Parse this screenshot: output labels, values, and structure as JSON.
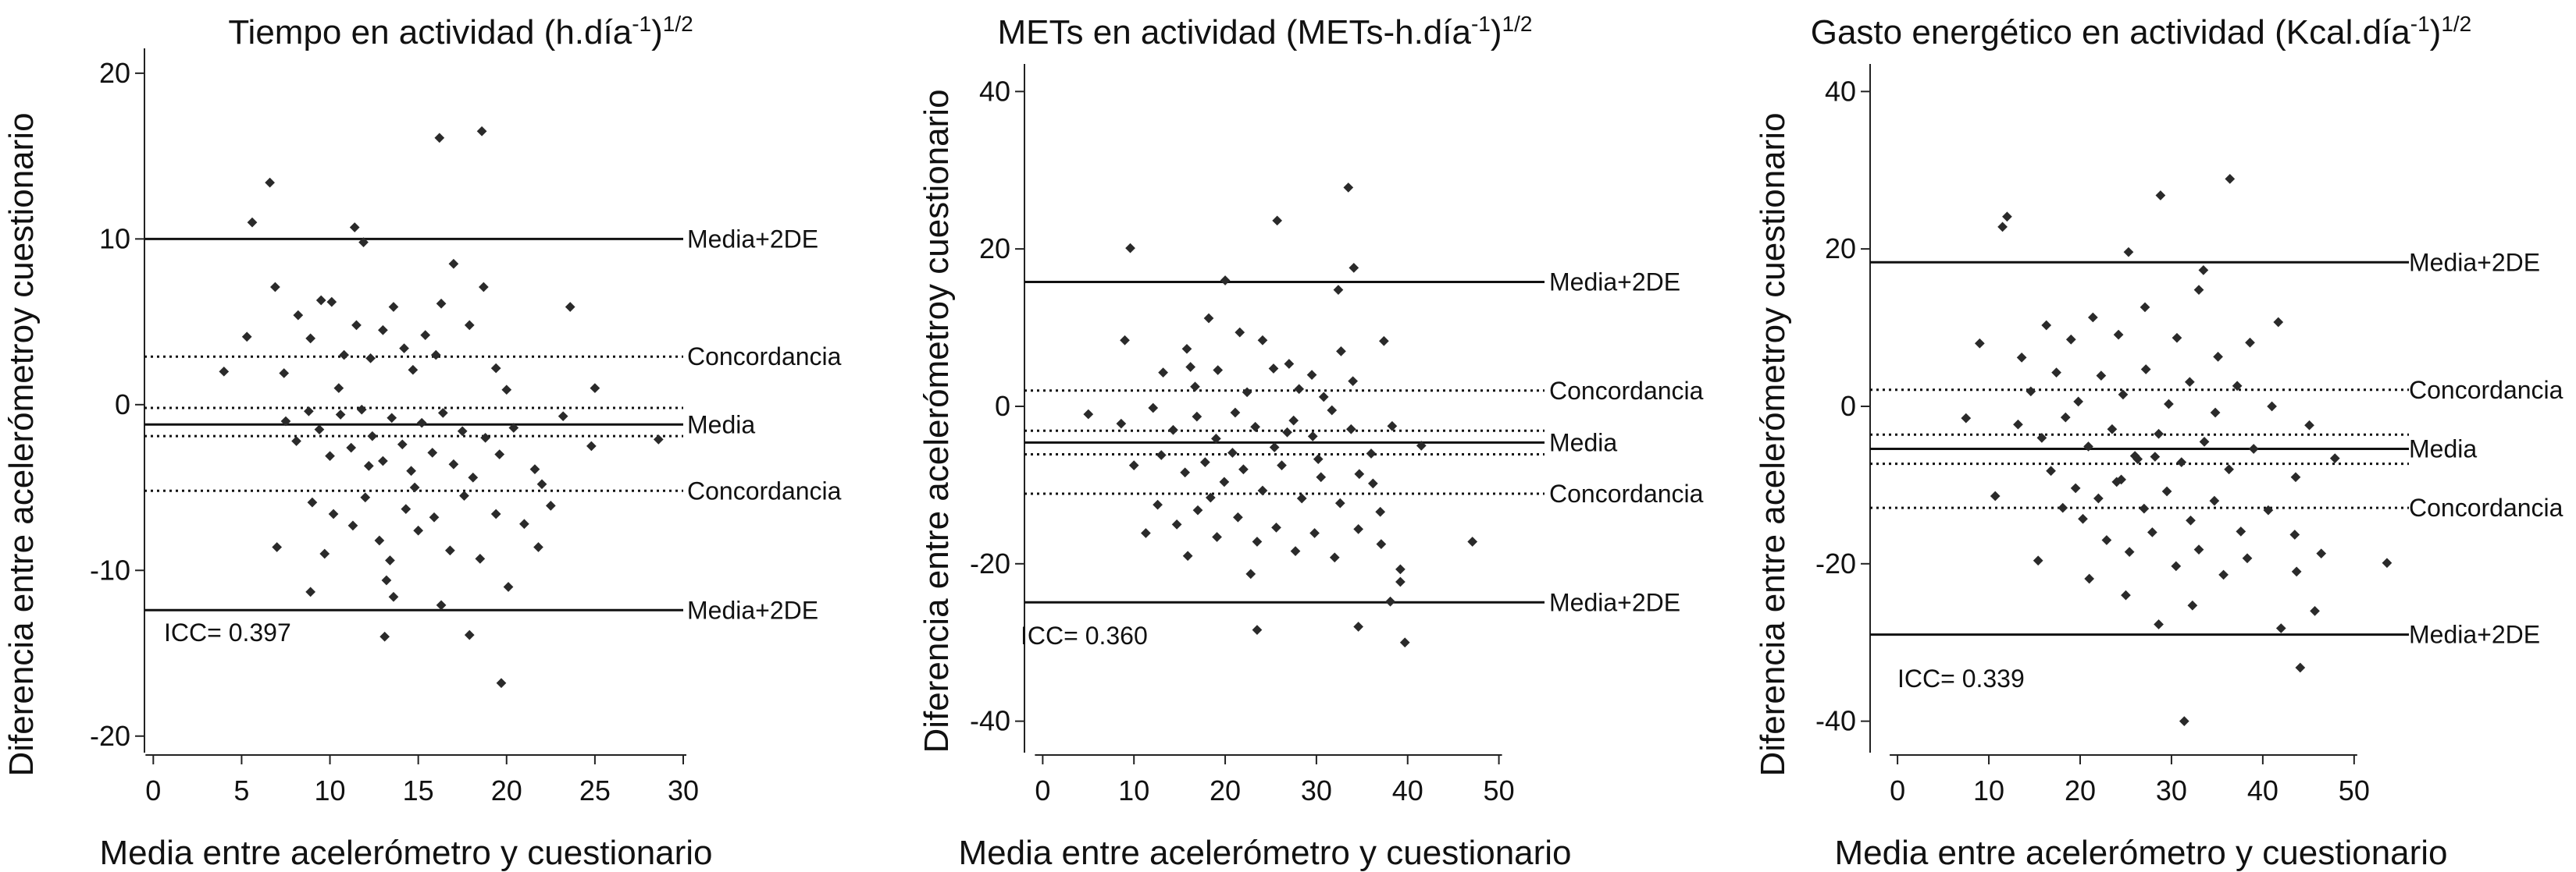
{
  "figure": {
    "ylabel": "Diferencia entre acelerómetroy cuestionario",
    "xlabel": "Media entre acelerómetro y cuestionario"
  },
  "chart_data": [
    {
      "type": "scatter",
      "title": "Tiempo en actividad (h.día",
      "title_sup1": "-1",
      "title_mid": ")",
      "title_sup2": "1/2",
      "xlabel": "Media entre acelerómetro y cuestionario",
      "xlim": [
        -0.5,
        30
      ],
      "ylim": [
        -21,
        21.5
      ],
      "xticks": [
        0,
        5,
        10,
        15,
        20,
        25,
        30
      ],
      "yticks": [
        20,
        10,
        0,
        -10,
        -20
      ],
      "annotation": "ICC= 0.397",
      "lines": [
        {
          "y": 10.0,
          "style": "solid",
          "label": "Media+2DE"
        },
        {
          "y": 2.9,
          "style": "dotted",
          "label": "Concordancia"
        },
        {
          "y": -0.2,
          "style": "dotted",
          "label": ""
        },
        {
          "y": -1.2,
          "style": "solid",
          "label": "Media"
        },
        {
          "y": -1.9,
          "style": "dotted",
          "label": ""
        },
        {
          "y": -5.2,
          "style": "dotted",
          "label": "Concordancia"
        },
        {
          "y": -12.4,
          "style": "solid",
          "label": "Media+2DE"
        }
      ],
      "points": [
        [
          6.6,
          13.4
        ],
        [
          16.2,
          16.1
        ],
        [
          18.6,
          16.5
        ],
        [
          5.6,
          11.0
        ],
        [
          11.4,
          10.7
        ],
        [
          11.9,
          9.8
        ],
        [
          6.9,
          7.1
        ],
        [
          4.0,
          2.0
        ],
        [
          5.3,
          4.1
        ],
        [
          7.4,
          1.9
        ],
        [
          8.2,
          5.4
        ],
        [
          8.9,
          4.0
        ],
        [
          9.5,
          6.3
        ],
        [
          10.1,
          6.2
        ],
        [
          10.8,
          3.0
        ],
        [
          11.5,
          4.8
        ],
        [
          12.3,
          2.8
        ],
        [
          13.0,
          4.5
        ],
        [
          13.6,
          5.9
        ],
        [
          14.2,
          3.4
        ],
        [
          14.7,
          2.1
        ],
        [
          15.4,
          4.2
        ],
        [
          16.0,
          3.0
        ],
        [
          16.3,
          6.1
        ],
        [
          17.0,
          8.5
        ],
        [
          17.9,
          4.8
        ],
        [
          18.7,
          7.1
        ],
        [
          19.4,
          2.2
        ],
        [
          20.0,
          0.9
        ],
        [
          23.6,
          5.9
        ],
        [
          25.0,
          1.0
        ],
        [
          7.5,
          -1.0
        ],
        [
          8.1,
          -2.2
        ],
        [
          8.8,
          -0.4
        ],
        [
          9.4,
          -1.5
        ],
        [
          10.0,
          -3.1
        ],
        [
          10.6,
          -0.6
        ],
        [
          11.2,
          -2.6
        ],
        [
          11.8,
          -0.3
        ],
        [
          12.4,
          -1.9
        ],
        [
          13.0,
          -3.4
        ],
        [
          13.5,
          -0.8
        ],
        [
          14.1,
          -2.4
        ],
        [
          14.6,
          -4.0
        ],
        [
          15.2,
          -1.1
        ],
        [
          15.8,
          -2.9
        ],
        [
          16.4,
          -0.5
        ],
        [
          17.0,
          -3.6
        ],
        [
          17.5,
          -1.6
        ],
        [
          18.1,
          -4.4
        ],
        [
          18.8,
          -2.0
        ],
        [
          19.6,
          -3.0
        ],
        [
          20.4,
          -1.4
        ],
        [
          21.6,
          -3.9
        ],
        [
          23.2,
          -0.7
        ],
        [
          24.8,
          -2.5
        ],
        [
          28.6,
          -2.1
        ],
        [
          9.0,
          -5.9
        ],
        [
          10.2,
          -6.6
        ],
        [
          11.3,
          -7.3
        ],
        [
          12.0,
          -5.6
        ],
        [
          12.8,
          -8.2
        ],
        [
          13.4,
          -9.4
        ],
        [
          14.3,
          -6.3
        ],
        [
          15.0,
          -7.6
        ],
        [
          15.9,
          -6.8
        ],
        [
          16.8,
          -8.8
        ],
        [
          17.6,
          -5.5
        ],
        [
          18.5,
          -9.3
        ],
        [
          19.4,
          -6.6
        ],
        [
          20.1,
          -11.0
        ],
        [
          21.0,
          -7.2
        ],
        [
          21.8,
          -8.6
        ],
        [
          22.5,
          -6.1
        ],
        [
          8.9,
          -11.3
        ],
        [
          13.2,
          -10.6
        ],
        [
          13.6,
          -11.6
        ],
        [
          13.1,
          -14.0
        ],
        [
          17.9,
          -13.9
        ],
        [
          19.7,
          -16.8
        ],
        [
          16.3,
          -12.1
        ],
        [
          7.0,
          -8.6
        ],
        [
          12.2,
          -3.7
        ],
        [
          14.8,
          -5.0
        ],
        [
          10.5,
          1.0
        ],
        [
          9.7,
          -9.0
        ],
        [
          22.0,
          -4.8
        ]
      ]
    },
    {
      "type": "scatter",
      "title": "METs en actividad (METs-h.día",
      "title_sup1": "-1",
      "title_mid": ")",
      "title_sup2": "1/2",
      "xlabel": "Media entre acelerómetro y cuestionario",
      "xlim": [
        -2,
        55
      ],
      "ylim": [
        -44,
        43.5
      ],
      "xticks": [
        0,
        10,
        20,
        30,
        40,
        50
      ],
      "yticks": [
        40,
        20,
        0,
        -20,
        -40
      ],
      "annotation": "ICC= 0.360",
      "lines": [
        {
          "y": 15.8,
          "style": "solid",
          "label": "Media+2DE"
        },
        {
          "y": 2.0,
          "style": "dotted",
          "label": "Concordancia"
        },
        {
          "y": -3.1,
          "style": "dotted",
          "label": ""
        },
        {
          "y": -4.6,
          "style": "solid",
          "label": "Media"
        },
        {
          "y": -6.1,
          "style": "dotted",
          "label": ""
        },
        {
          "y": -11.1,
          "style": "dotted",
          "label": "Concordancia"
        },
        {
          "y": -24.9,
          "style": "solid",
          "label": "Media+2DE"
        }
      ],
      "points": [
        [
          33.5,
          27.8
        ],
        [
          25.7,
          23.6
        ],
        [
          9.6,
          20.1
        ],
        [
          20.0,
          16.0
        ],
        [
          34.1,
          17.6
        ],
        [
          32.4,
          14.8
        ],
        [
          9.0,
          8.4
        ],
        [
          15.8,
          7.3
        ],
        [
          18.2,
          11.2
        ],
        [
          21.6,
          9.4
        ],
        [
          24.1,
          8.4
        ],
        [
          27.0,
          5.4
        ],
        [
          29.5,
          4.0
        ],
        [
          32.7,
          7.0
        ],
        [
          37.4,
          8.3
        ],
        [
          13.2,
          4.3
        ],
        [
          16.7,
          2.5
        ],
        [
          19.2,
          4.6
        ],
        [
          22.4,
          1.8
        ],
        [
          25.3,
          4.8
        ],
        [
          28.1,
          2.2
        ],
        [
          30.8,
          1.2
        ],
        [
          34.0,
          3.2
        ],
        [
          5.0,
          -1.0
        ],
        [
          8.6,
          -2.2
        ],
        [
          12.1,
          -0.2
        ],
        [
          14.3,
          -3.0
        ],
        [
          16.9,
          -1.3
        ],
        [
          19.0,
          -4.1
        ],
        [
          21.1,
          -0.8
        ],
        [
          23.3,
          -2.6
        ],
        [
          25.4,
          -5.2
        ],
        [
          27.5,
          -1.8
        ],
        [
          29.6,
          -3.8
        ],
        [
          31.7,
          -0.5
        ],
        [
          33.8,
          -2.9
        ],
        [
          36.0,
          -6.0
        ],
        [
          38.3,
          -2.5
        ],
        [
          41.5,
          -5.0
        ],
        [
          13.0,
          -6.2
        ],
        [
          15.6,
          -8.4
        ],
        [
          17.8,
          -7.1
        ],
        [
          19.9,
          -9.6
        ],
        [
          22.0,
          -8.0
        ],
        [
          24.1,
          -10.7
        ],
        [
          26.2,
          -7.5
        ],
        [
          28.4,
          -11.7
        ],
        [
          30.5,
          -9.0
        ],
        [
          32.6,
          -12.3
        ],
        [
          34.7,
          -8.6
        ],
        [
          37.0,
          -13.4
        ],
        [
          12.6,
          -12.5
        ],
        [
          14.7,
          -15.0
        ],
        [
          17.0,
          -13.2
        ],
        [
          19.1,
          -16.6
        ],
        [
          21.4,
          -14.1
        ],
        [
          23.5,
          -17.2
        ],
        [
          25.6,
          -15.4
        ],
        [
          27.7,
          -18.4
        ],
        [
          29.8,
          -16.1
        ],
        [
          32.0,
          -19.2
        ],
        [
          34.6,
          -15.6
        ],
        [
          37.1,
          -17.5
        ],
        [
          39.2,
          -20.7
        ],
        [
          11.3,
          -16.1
        ],
        [
          15.9,
          -19.0
        ],
        [
          22.8,
          -21.3
        ],
        [
          23.5,
          -28.4
        ],
        [
          34.6,
          -28.0
        ],
        [
          38.1,
          -24.8
        ],
        [
          39.7,
          -30.0
        ],
        [
          39.2,
          -22.3
        ],
        [
          47.1,
          -17.2
        ],
        [
          20.8,
          -5.9
        ],
        [
          26.8,
          -3.3
        ],
        [
          18.4,
          -11.6
        ],
        [
          30.2,
          -6.7
        ],
        [
          16.2,
          5.0
        ],
        [
          36.2,
          -9.8
        ],
        [
          10.0,
          -7.5
        ]
      ]
    },
    {
      "type": "scatter",
      "title": "Gasto energético en actividad (Kcal.día",
      "title_sup1": "-1",
      "title_mid": ")",
      "title_sup2": "1/2",
      "xlabel": "Media entre acelerómetro y cuestionario",
      "xlim": [
        -3,
        56
      ],
      "ylim": [
        -44,
        43.5
      ],
      "xticks": [
        0,
        10,
        20,
        30,
        40,
        50
      ],
      "yticks": [
        40,
        20,
        0,
        -20,
        -40
      ],
      "annotation": "ICC= 0.339",
      "lines": [
        {
          "y": 18.3,
          "style": "solid",
          "label": "Media+2DE"
        },
        {
          "y": 2.1,
          "style": "dotted",
          "label": "Concordancia"
        },
        {
          "y": -3.6,
          "style": "dotted",
          "label": ""
        },
        {
          "y": -5.4,
          "style": "solid",
          "label": "Media"
        },
        {
          "y": -7.3,
          "style": "dotted",
          "label": ""
        },
        {
          "y": -12.9,
          "style": "dotted",
          "label": "Concordancia"
        },
        {
          "y": -29.0,
          "style": "solid",
          "label": "Media+2DE"
        }
      ],
      "points": [
        [
          11.5,
          22.8
        ],
        [
          12.0,
          24.1
        ],
        [
          36.4,
          28.9
        ],
        [
          28.8,
          26.8
        ],
        [
          25.3,
          19.6
        ],
        [
          33.5,
          17.3
        ],
        [
          41.7,
          10.7
        ],
        [
          33.0,
          14.8
        ],
        [
          9.0,
          8.0
        ],
        [
          13.6,
          6.2
        ],
        [
          16.3,
          10.3
        ],
        [
          19.0,
          8.5
        ],
        [
          21.4,
          11.3
        ],
        [
          24.2,
          9.1
        ],
        [
          27.1,
          12.6
        ],
        [
          30.6,
          8.7
        ],
        [
          35.1,
          6.3
        ],
        [
          38.6,
          8.1
        ],
        [
          14.6,
          1.9
        ],
        [
          17.4,
          4.3
        ],
        [
          19.8,
          0.6
        ],
        [
          22.3,
          3.9
        ],
        [
          24.7,
          1.5
        ],
        [
          27.2,
          4.7
        ],
        [
          29.7,
          0.3
        ],
        [
          32.0,
          3.1
        ],
        [
          34.8,
          -0.8
        ],
        [
          37.2,
          2.6
        ],
        [
          41.0,
          0.0
        ],
        [
          45.1,
          -2.4
        ],
        [
          7.5,
          -1.5
        ],
        [
          13.2,
          -2.3
        ],
        [
          15.8,
          -4.0
        ],
        [
          18.4,
          -1.4
        ],
        [
          20.9,
          -5.1
        ],
        [
          23.5,
          -2.9
        ],
        [
          26.0,
          -6.3
        ],
        [
          28.6,
          -3.5
        ],
        [
          31.1,
          -7.1
        ],
        [
          33.6,
          -4.5
        ],
        [
          36.3,
          -8.0
        ],
        [
          39.0,
          -5.4
        ],
        [
          43.6,
          -9.0
        ],
        [
          47.9,
          -6.6
        ],
        [
          16.8,
          -8.2
        ],
        [
          19.5,
          -10.4
        ],
        [
          22.0,
          -11.7
        ],
        [
          24.5,
          -9.3
        ],
        [
          27.0,
          -13.0
        ],
        [
          29.5,
          -10.8
        ],
        [
          32.1,
          -14.5
        ],
        [
          34.7,
          -12.0
        ],
        [
          37.6,
          -15.9
        ],
        [
          40.6,
          -13.2
        ],
        [
          43.5,
          -16.3
        ],
        [
          20.3,
          -14.3
        ],
        [
          22.9,
          -17.0
        ],
        [
          25.4,
          -18.5
        ],
        [
          27.9,
          -16.0
        ],
        [
          30.5,
          -20.3
        ],
        [
          33.0,
          -18.2
        ],
        [
          35.7,
          -21.4
        ],
        [
          38.3,
          -19.3
        ],
        [
          43.7,
          -21.0
        ],
        [
          46.4,
          -18.7
        ],
        [
          15.4,
          -19.6
        ],
        [
          21.0,
          -21.9
        ],
        [
          25.0,
          -24.0
        ],
        [
          28.6,
          -27.7
        ],
        [
          32.3,
          -25.3
        ],
        [
          42.0,
          -28.2
        ],
        [
          44.1,
          -33.2
        ],
        [
          45.7,
          -26.0
        ],
        [
          31.4,
          -40.0
        ],
        [
          53.6,
          -19.9
        ],
        [
          10.7,
          -11.4
        ],
        [
          26.3,
          -6.7
        ],
        [
          18.1,
          -12.9
        ],
        [
          24.0,
          -9.6
        ],
        [
          28.2,
          -6.4
        ]
      ]
    }
  ]
}
